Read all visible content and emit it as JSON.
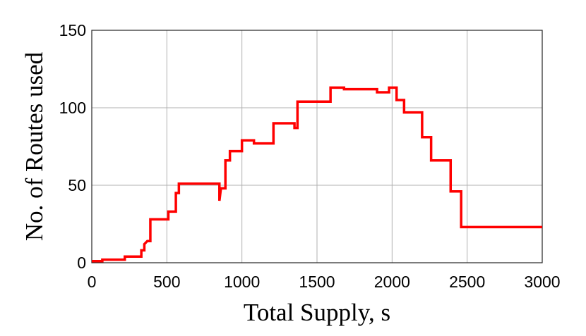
{
  "chart_data": {
    "type": "line",
    "x_label": "Total Supply, s",
    "y_label": "No. of Routes used",
    "x": [
      0,
      70,
      70,
      220,
      220,
      330,
      330,
      350,
      350,
      370,
      390,
      390,
      510,
      510,
      560,
      560,
      580,
      580,
      850,
      850,
      860,
      890,
      890,
      920,
      920,
      1000,
      1000,
      1080,
      1080,
      1210,
      1210,
      1350,
      1350,
      1370,
      1370,
      1590,
      1590,
      1680,
      1680,
      1900,
      1900,
      1980,
      1980,
      2030,
      2030,
      2080,
      2080,
      2200,
      2200,
      2260,
      2260,
      2390,
      2390,
      2460,
      2460,
      3000
    ],
    "values": [
      1,
      1,
      2,
      2,
      4,
      4,
      8,
      8,
      12,
      14,
      14,
      28,
      28,
      33,
      33,
      45,
      45,
      51,
      51,
      40,
      48,
      48,
      66,
      66,
      72,
      72,
      79,
      79,
      77,
      77,
      90,
      90,
      87,
      87,
      104,
      104,
      113,
      113,
      112,
      112,
      110,
      110,
      113,
      113,
      105,
      105,
      97,
      97,
      81,
      81,
      66,
      66,
      46,
      46,
      23,
      23
    ],
    "color": "#ff0000",
    "xlim": [
      0,
      3000
    ],
    "xticks": [
      0,
      500,
      1000,
      1500,
      2000,
      2500,
      3000
    ],
    "ylim": [
      0,
      150
    ],
    "yticks": [
      0,
      50,
      100,
      150
    ],
    "grid": true
  }
}
